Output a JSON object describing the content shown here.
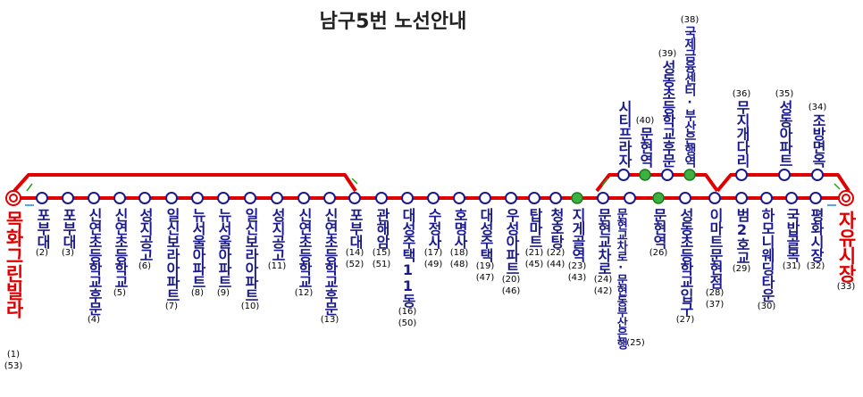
{
  "title": "남구5번 노선안내",
  "stops": [
    {
      "label": "목화그린빌라",
      "numbers": [
        "(1)",
        "(53)"
      ]
    },
    {
      "label": "포부대",
      "numbers": [
        "(2)"
      ]
    },
    {
      "label": "포부대",
      "numbers": [
        "(3)"
      ]
    },
    {
      "label": "신연초등학교후문",
      "numbers": [
        "(4)"
      ]
    },
    {
      "label": "신연초등학교",
      "numbers": [
        "(5)"
      ]
    },
    {
      "label": "성지공고",
      "numbers": [
        "(6)"
      ]
    },
    {
      "label": "일신보라아파트",
      "numbers": [
        "(7)"
      ]
    },
    {
      "label": "뉴서울아파트",
      "numbers": [
        "(8)"
      ]
    },
    {
      "label": "뉴서울아파트",
      "numbers": [
        "(9)"
      ]
    },
    {
      "label": "일신보라아파트",
      "numbers": [
        "(10)"
      ]
    },
    {
      "label": "성지공고",
      "numbers": [
        "(11)"
      ]
    },
    {
      "label": "신연초등학교",
      "numbers": [
        "(12)"
      ]
    },
    {
      "label": "신연초등학교후문",
      "numbers": [
        "(13)"
      ]
    },
    {
      "label": "포부대",
      "numbers": [
        "(14)",
        "(52)"
      ]
    },
    {
      "label": "관해암",
      "numbers": [
        "(15)",
        "(51)"
      ]
    },
    {
      "label": "대성주택11동",
      "numbers": [
        "(16)",
        "(50)"
      ]
    },
    {
      "label": "수정사",
      "numbers": [
        "(17)",
        "(49)"
      ]
    },
    {
      "label": "호명사",
      "numbers": [
        "(18)",
        "(48)"
      ]
    },
    {
      "label": "대성주택",
      "numbers": [
        "(19)",
        "(47)"
      ]
    },
    {
      "label": "우성아파트",
      "numbers": [
        "(20)",
        "(46)"
      ]
    },
    {
      "label": "탑마트",
      "numbers": [
        "(21)",
        "(45)"
      ]
    },
    {
      "label": "청호탕",
      "numbers": [
        "(22)",
        "(44)"
      ]
    },
    {
      "label": "지게골역",
      "numbers": [
        "(23)",
        "(43)"
      ]
    },
    {
      "label": "문현교차로",
      "numbers": [
        "(24)",
        "(42)"
      ]
    },
    {
      "label": "문현교차로·문현동부산은행",
      "numbers": [
        "(25)"
      ]
    },
    {
      "label": "문현역",
      "numbers": [
        "(26)"
      ]
    },
    {
      "label": "성동초등학교입구",
      "numbers": [
        "(27)"
      ]
    },
    {
      "label": "이마트문현점",
      "numbers": [
        "(28)",
        "(37)"
      ]
    },
    {
      "label": "범2호교",
      "numbers": [
        "(29)"
      ]
    },
    {
      "label": "하모니웨딩타운",
      "numbers": [
        "(30)"
      ]
    },
    {
      "label": "국밥골목",
      "numbers": [
        "(31)"
      ]
    },
    {
      "label": "평화시장",
      "numbers": [
        "(32)"
      ]
    },
    {
      "label": "자유시장",
      "numbers": [
        "(33)"
      ]
    }
  ],
  "upper_stops": [
    {
      "label": "시티프라자"
    },
    {
      "number": "(40)",
      "label": "문현역"
    },
    {
      "number": "(39)",
      "label": "성동초등학교후문"
    },
    {
      "number": "(38)",
      "label": "국제금융센터·부산은행역"
    },
    {
      "number": "(36)",
      "label": "무지개다리"
    },
    {
      "number": "(35)",
      "label": "성동아파트"
    },
    {
      "number": "(34)",
      "label": "조방면옥"
    }
  ]
}
